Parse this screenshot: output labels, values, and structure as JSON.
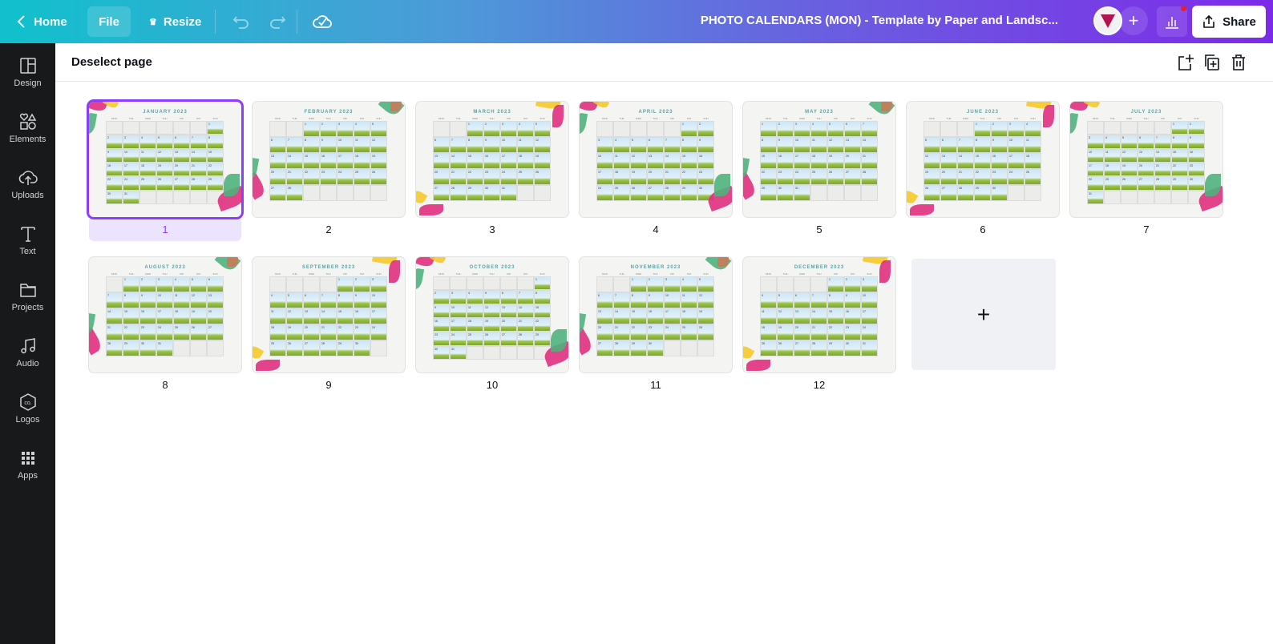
{
  "topbar": {
    "home": "Home",
    "file": "File",
    "resize": "Resize",
    "title": "PHOTO CALENDARS (MON) - Template by Paper and Landsc...",
    "share": "Share"
  },
  "sidebar": {
    "items": [
      {
        "label": "Design",
        "icon": "layout-icon"
      },
      {
        "label": "Elements",
        "icon": "shapes-icon"
      },
      {
        "label": "Uploads",
        "icon": "cloud-upload-icon"
      },
      {
        "label": "Text",
        "icon": "text-icon"
      },
      {
        "label": "Projects",
        "icon": "folder-icon"
      },
      {
        "label": "Audio",
        "icon": "music-icon"
      },
      {
        "label": "Logos",
        "icon": "logo-icon"
      },
      {
        "label": "Apps",
        "icon": "apps-grid-icon"
      }
    ]
  },
  "subbar": {
    "deselect": "Deselect page"
  },
  "weekdays": [
    "MON",
    "TUE",
    "WED",
    "THU",
    "FRI",
    "SAT",
    "SUN"
  ],
  "selected_page": 1,
  "pages": [
    {
      "number": "1",
      "title": "JANUARY 2023",
      "start_weekday": 6,
      "days": 31
    },
    {
      "number": "2",
      "title": "FEBRUARY 2023",
      "start_weekday": 2,
      "days": 28
    },
    {
      "number": "3",
      "title": "MARCH 2023",
      "start_weekday": 2,
      "days": 31
    },
    {
      "number": "4",
      "title": "APRIL 2023",
      "start_weekday": 5,
      "days": 30
    },
    {
      "number": "5",
      "title": "MAY 2023",
      "start_weekday": 0,
      "days": 31
    },
    {
      "number": "6",
      "title": "JUNE 2023",
      "start_weekday": 3,
      "days": 30
    },
    {
      "number": "7",
      "title": "JULY 2023",
      "start_weekday": 5,
      "days": 31
    },
    {
      "number": "8",
      "title": "AUGUST 2023",
      "start_weekday": 1,
      "days": 31
    },
    {
      "number": "9",
      "title": "SEPTEMBER 2023",
      "start_weekday": 4,
      "days": 30
    },
    {
      "number": "10",
      "title": "OCTOBER 2023",
      "start_weekday": 6,
      "days": 31
    },
    {
      "number": "11",
      "title": "NOVEMBER 2023",
      "start_weekday": 2,
      "days": 30
    },
    {
      "number": "12",
      "title": "DECEMBER 2023",
      "start_weekday": 4,
      "days": 31
    }
  ],
  "add_page": "+",
  "colors": {
    "accent": "#8b3dff",
    "sidebar": "#18191b",
    "leaf_pink": "#e0307f",
    "leaf_green": "#4fb37d",
    "leaf_yellow": "#f6c928"
  }
}
